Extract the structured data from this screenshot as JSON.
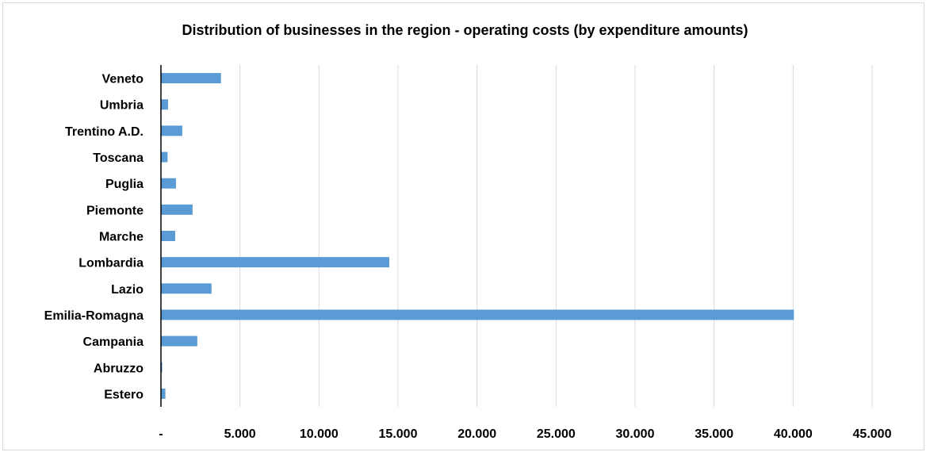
{
  "chart_data": {
    "type": "bar",
    "orientation": "horizontal",
    "title": "Distribution of businesses in the region - operating costs (by expenditure amounts)",
    "categories": [
      "Veneto",
      "Umbria",
      "Trentino A.D.",
      "Toscana",
      "Puglia",
      "Piemonte",
      "Marche",
      "Lombardia",
      "Lazio",
      "Emilia-Romagna",
      "Campania",
      "Abruzzo",
      "Estero"
    ],
    "values": [
      3800,
      450,
      1350,
      420,
      950,
      2000,
      900,
      14450,
      3200,
      40050,
      2300,
      80,
      280
    ],
    "xlim": [
      0,
      45000
    ],
    "xticks": [
      0,
      5000,
      10000,
      15000,
      20000,
      25000,
      30000,
      35000,
      40000,
      45000
    ],
    "xtick_labels": [
      "-",
      "5.000",
      "10.000",
      "15.000",
      "20.000",
      "25.000",
      "30.000",
      "35.000",
      "40.000",
      "45.000"
    ],
    "grid": "vertical",
    "legend": "none",
    "bar_color": "#5b9bd5",
    "grid_color": "#d9d9d9"
  }
}
